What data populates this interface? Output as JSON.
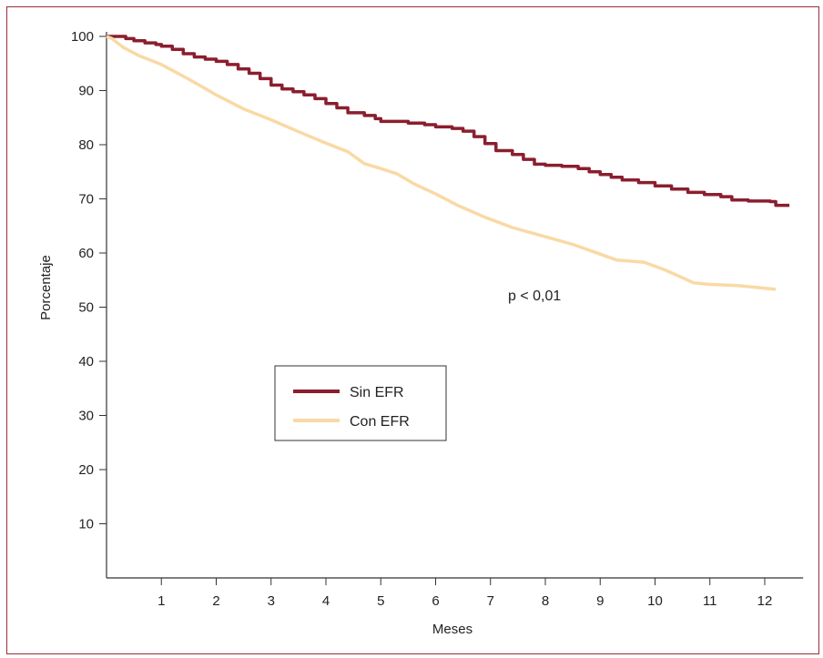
{
  "chart_data": {
    "type": "line",
    "title": "",
    "xlabel": "Meses",
    "ylabel": "Porcentaje",
    "xlim": [
      0,
      12.7
    ],
    "ylim": [
      0,
      102
    ],
    "x_ticks": [
      1,
      2,
      3,
      4,
      5,
      6,
      7,
      8,
      9,
      10,
      11,
      12
    ],
    "y_ticks": [
      10,
      20,
      30,
      40,
      50,
      60,
      70,
      80,
      90,
      100
    ],
    "grid": false,
    "legend_position": "center-left",
    "annotation": "p < 0,01",
    "series": [
      {
        "name": "Sin EFR",
        "color": "#8b1e2e",
        "step": true,
        "points": [
          [
            0,
            100
          ],
          [
            0.25,
            100
          ],
          [
            0.35,
            99.6
          ],
          [
            0.5,
            99.2
          ],
          [
            0.7,
            98.8
          ],
          [
            0.9,
            98.5
          ],
          [
            1.0,
            98.2
          ],
          [
            1.2,
            97.6
          ],
          [
            1.4,
            96.8
          ],
          [
            1.6,
            96.2
          ],
          [
            1.8,
            95.8
          ],
          [
            2.0,
            95.4
          ],
          [
            2.2,
            94.8
          ],
          [
            2.4,
            94.0
          ],
          [
            2.6,
            93.2
          ],
          [
            2.8,
            92.2
          ],
          [
            3.0,
            91.0
          ],
          [
            3.2,
            90.3
          ],
          [
            3.4,
            89.8
          ],
          [
            3.6,
            89.2
          ],
          [
            3.8,
            88.5
          ],
          [
            4.0,
            87.6
          ],
          [
            4.2,
            86.8
          ],
          [
            4.4,
            85.9
          ],
          [
            4.7,
            85.4
          ],
          [
            4.9,
            84.8
          ],
          [
            5.0,
            84.3
          ],
          [
            5.5,
            84.0
          ],
          [
            5.8,
            83.7
          ],
          [
            6.0,
            83.3
          ],
          [
            6.3,
            83.0
          ],
          [
            6.5,
            82.5
          ],
          [
            6.7,
            81.5
          ],
          [
            6.9,
            80.2
          ],
          [
            7.1,
            78.9
          ],
          [
            7.4,
            78.2
          ],
          [
            7.6,
            77.3
          ],
          [
            7.8,
            76.4
          ],
          [
            8.0,
            76.2
          ],
          [
            8.3,
            76.0
          ],
          [
            8.6,
            75.6
          ],
          [
            8.8,
            75.0
          ],
          [
            9.0,
            74.5
          ],
          [
            9.2,
            74.0
          ],
          [
            9.4,
            73.5
          ],
          [
            9.7,
            73.0
          ],
          [
            10.0,
            72.4
          ],
          [
            10.3,
            71.8
          ],
          [
            10.6,
            71.2
          ],
          [
            10.9,
            70.8
          ],
          [
            11.2,
            70.4
          ],
          [
            11.4,
            69.8
          ],
          [
            11.7,
            69.6
          ],
          [
            12.1,
            69.5
          ],
          [
            12.2,
            68.8
          ],
          [
            12.45,
            68.8
          ]
        ]
      },
      {
        "name": "Con EFR",
        "color": "#f9d9a5",
        "step": false,
        "points": [
          [
            0,
            100
          ],
          [
            0.1,
            99.6
          ],
          [
            0.3,
            98.0
          ],
          [
            0.6,
            96.4
          ],
          [
            1.0,
            94.8
          ],
          [
            1.5,
            92.1
          ],
          [
            2.0,
            89.2
          ],
          [
            2.5,
            86.6
          ],
          [
            3.0,
            84.6
          ],
          [
            3.5,
            82.4
          ],
          [
            4.0,
            80.3
          ],
          [
            4.4,
            78.7
          ],
          [
            4.7,
            76.5
          ],
          [
            5.0,
            75.6
          ],
          [
            5.3,
            74.6
          ],
          [
            5.6,
            72.8
          ],
          [
            6.0,
            70.9
          ],
          [
            6.4,
            68.8
          ],
          [
            6.9,
            66.6
          ],
          [
            7.4,
            64.7
          ],
          [
            8.0,
            63.0
          ],
          [
            8.5,
            61.6
          ],
          [
            9.0,
            59.8
          ],
          [
            9.3,
            58.7
          ],
          [
            9.8,
            58.3
          ],
          [
            10.2,
            56.8
          ],
          [
            10.7,
            54.5
          ],
          [
            11.0,
            54.2
          ],
          [
            11.5,
            54.0
          ],
          [
            12.2,
            53.3
          ]
        ]
      }
    ]
  }
}
